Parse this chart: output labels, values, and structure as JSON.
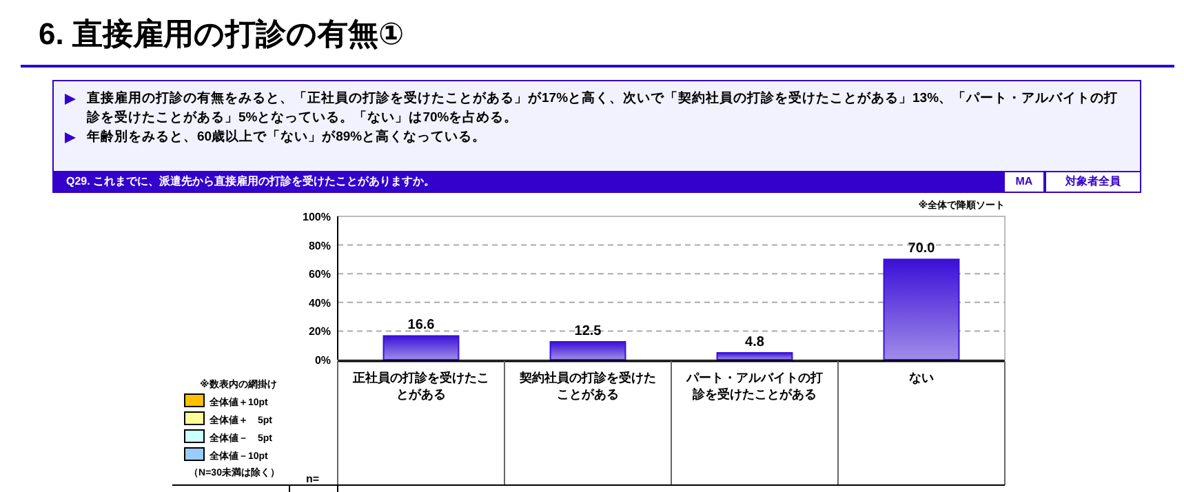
{
  "chart_data": {
    "type": "bar",
    "title": "6. 直接雇用の打診の有無①",
    "subtitle": "Q29. これまでに、派遣先から直接雇用の打診を受けたことがありますか。",
    "categories": [
      "正社員の打診を受けたことがある",
      "契約社員の打診を受けたことがある",
      "パート・アルバイトの打診を受けたことがある",
      "ない"
    ],
    "values": [
      16.6,
      12.5,
      4.8,
      70.0
    ],
    "color": "#3a10d8",
    "ylim": [
      0,
      100
    ],
    "yticks": [
      {
        "value": 0,
        "label": "0%"
      },
      {
        "value": 20,
        "label": "20%"
      },
      {
        "value": 40,
        "label": "40%"
      },
      {
        "value": 60,
        "label": "60%"
      },
      {
        "value": 80,
        "label": "80%"
      },
      {
        "value": 100,
        "label": "100%"
      }
    ],
    "grid": "y",
    "line_style": "dashed",
    "value_labels": [
      "16.6",
      "12.5",
      "4.8",
      "70.0"
    ],
    "legend": false,
    "annotations": [
      "直接雇用の打診の有無をみると、「正社員の打診を受けたことがある」が17%と高く、次いで「契約社員の打診を受けたことがある」13%、「パート・アルバイトの打診を受けたことがある」5%となっている。「ない」は70%を占める。",
      "年齢別をみると、60歳以上で「ない」が89%と高くなっている。",
      "MA",
      "対象者全員",
      "※全体で降順ソート",
      "※数表内の網掛け",
      "全体値＋10pt",
      "全体値＋　5pt",
      "全体値－　5pt",
      "全体値－10pt",
      "（N=30未満は除く）",
      "n="
    ]
  }
}
